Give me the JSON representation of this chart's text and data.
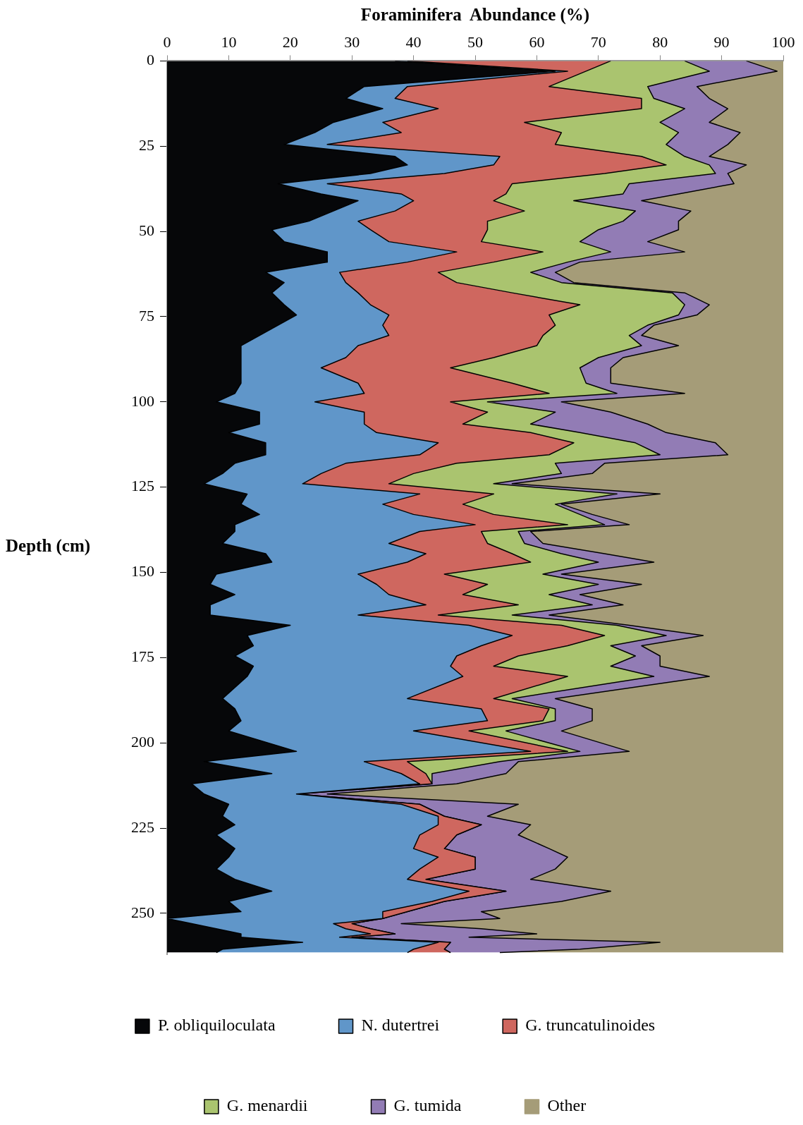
{
  "chart_data": {
    "type": "area",
    "xlabel": "Foraminifera  Abundance (%)",
    "ylabel": "Depth (cm)",
    "orientation": "horizontal",
    "stacked": true,
    "legend": "bottom",
    "xlim": [
      0,
      100
    ],
    "xticks": [
      0,
      10,
      20,
      30,
      40,
      50,
      60,
      70,
      80,
      90,
      100
    ],
    "ylim": [
      262,
      0
    ],
    "yticks": [
      0,
      25,
      50,
      75,
      100,
      125,
      150,
      175,
      200,
      225,
      250
    ],
    "x": [
      0,
      3,
      7.5,
      11,
      14,
      18,
      21,
      24.5,
      28,
      30.5,
      33,
      36,
      39,
      41,
      44,
      47,
      49.5,
      53,
      56,
      59,
      62,
      65,
      68,
      71.5,
      74.5,
      77.5,
      80.5,
      83.5,
      87,
      90,
      94.5,
      97.5,
      100,
      103,
      106.5,
      109,
      112,
      115.5,
      118,
      121,
      124,
      127,
      130,
      133,
      136,
      138,
      141.5,
      144.5,
      147,
      150.5,
      153.5,
      156.5,
      159.5,
      162.5,
      165.5,
      168.5,
      171.5,
      174.5,
      177.5,
      180.5,
      187,
      190,
      193.5,
      196.5,
      202.5,
      205.5,
      209,
      212,
      215,
      218,
      221.5,
      224,
      227,
      231,
      233.5,
      237,
      240,
      243.5,
      246.5,
      249.5,
      251.5,
      253,
      254.5,
      256,
      257,
      258.5,
      260.5,
      261.5
    ],
    "series": [
      {
        "name": "P. obliquiloculata",
        "color": "#060709",
        "values": [
          37,
          63,
          32,
          29,
          35,
          27,
          24,
          19,
          37,
          39,
          33,
          18,
          25,
          31,
          27,
          23,
          17,
          19,
          26,
          26,
          16,
          19,
          17,
          19,
          21,
          18,
          15,
          12,
          12,
          12,
          12,
          11,
          8,
          15,
          15,
          10,
          16,
          16,
          11,
          9,
          6,
          13,
          12,
          15,
          11,
          11,
          9,
          16,
          17,
          8,
          7,
          11,
          7,
          7,
          20,
          13,
          14,
          11,
          14,
          13,
          9,
          11,
          12,
          10,
          21,
          6,
          17,
          4,
          6,
          10,
          9,
          11,
          8,
          11,
          10,
          8,
          11,
          17,
          10,
          12,
          0,
          4,
          8,
          12,
          12,
          22,
          9,
          8
        ]
      },
      {
        "name": "N. dutertrei",
        "color": "#6096c9",
        "values": [
          2,
          2,
          7,
          8,
          9,
          8,
          14,
          7,
          17,
          14,
          12,
          8,
          13,
          9,
          10,
          8,
          16,
          17,
          21,
          13,
          12,
          10,
          14,
          14,
          15,
          17,
          21,
          19,
          17,
          13,
          19,
          21,
          16,
          17,
          17,
          24,
          28,
          25,
          18,
          16,
          16,
          28,
          23,
          25,
          39,
          30,
          27,
          26,
          22,
          23,
          27,
          25,
          35,
          24,
          29,
          43,
          37,
          36,
          32,
          35,
          30,
          40,
          40,
          30,
          38,
          26,
          21,
          37,
          15,
          28,
          35,
          33,
          33,
          29,
          34,
          33,
          28,
          32,
          33,
          23,
          35,
          23,
          21,
          21,
          16,
          22,
          31,
          31
        ]
      },
      {
        "name": "G. truncatulinoides",
        "color": "#cf675f",
        "values": [
          33,
          3,
          23,
          40,
          33,
          23,
          26,
          37,
          23,
          28,
          26,
          30,
          17,
          13,
          21,
          21,
          19,
          15,
          14,
          14,
          16,
          18,
          25,
          34,
          26,
          28,
          25,
          29,
          24,
          21,
          25,
          30,
          22,
          20,
          16,
          25,
          22,
          21,
          18,
          15,
          14,
          12,
          13,
          13,
          15,
          10,
          16,
          14,
          20,
          14,
          18,
          12,
          15,
          13,
          15,
          15,
          14,
          10,
          7,
          17,
          14,
          11,
          9,
          9,
          6,
          7,
          4,
          2,
          0,
          3,
          1,
          7,
          6,
          5,
          6,
          9,
          3,
          6,
          2,
          4,
          0,
          3,
          4,
          4,
          2,
          2,
          5,
          7
        ]
      },
      {
        "name": "G. menardii",
        "color": "#aac46f",
        "values": [
          12,
          20,
          16,
          2,
          7,
          22,
          19,
          18,
          7,
          7,
          18,
          19,
          19,
          13,
          18,
          22,
          18,
          16,
          11,
          12,
          15,
          17,
          26,
          17,
          21,
          15,
          14,
          17,
          17,
          21,
          12,
          11,
          6,
          11,
          11,
          8,
          10,
          18,
          16,
          24,
          17,
          20,
          15,
          14,
          6,
          6,
          6,
          8,
          11,
          16,
          18,
          14,
          12,
          12,
          9,
          10,
          7,
          19,
          19,
          14,
          3,
          1,
          2,
          6,
          2,
          15,
          1,
          0,
          0,
          0,
          0,
          0,
          0,
          0,
          0,
          0,
          0,
          0,
          0,
          0,
          0,
          0,
          0,
          0,
          0,
          0,
          0,
          0
        ]
      },
      {
        "name": "G. tumida",
        "color": "#927cb5",
        "values": [
          10,
          11,
          8,
          9,
          7,
          8,
          10,
          10,
          4,
          6,
          2,
          17,
          9,
          11,
          9,
          9,
          13,
          11,
          12,
          2,
          4,
          2,
          2,
          4,
          3,
          1,
          2,
          6,
          4,
          5,
          4,
          11,
          12,
          9,
          19,
          14,
          13,
          11,
          8,
          5,
          3,
          7,
          1,
          2,
          4,
          2,
          3,
          7,
          9,
          3,
          7,
          5,
          5,
          6,
          2,
          6,
          5,
          4,
          8,
          9,
          7,
          6,
          6,
          9,
          8,
          3,
          12,
          4,
          5,
          16,
          7,
          8,
          10,
          17,
          15,
          13,
          17,
          17,
          19,
          12,
          19,
          8,
          18,
          23,
          19,
          34,
          22,
          8
        ]
      },
      {
        "name": "Other",
        "color": "#a59c78",
        "values": [
          6,
          1,
          14,
          12,
          9,
          12,
          7,
          9,
          12,
          6,
          9,
          8,
          17,
          23,
          15,
          17,
          17,
          22,
          16,
          33,
          37,
          34,
          16,
          12,
          14,
          21,
          23,
          17,
          26,
          28,
          28,
          16,
          36,
          28,
          22,
          19,
          11,
          9,
          29,
          31,
          44,
          20,
          36,
          31,
          25,
          41,
          39,
          29,
          21,
          36,
          23,
          33,
          26,
          38,
          25,
          13,
          23,
          20,
          20,
          12,
          37,
          31,
          31,
          36,
          25,
          43,
          45,
          53,
          74,
          43,
          48,
          41,
          43,
          38,
          35,
          37,
          41,
          28,
          36,
          49,
          46,
          62,
          49,
          40,
          51,
          20,
          33,
          46
        ]
      }
    ]
  }
}
